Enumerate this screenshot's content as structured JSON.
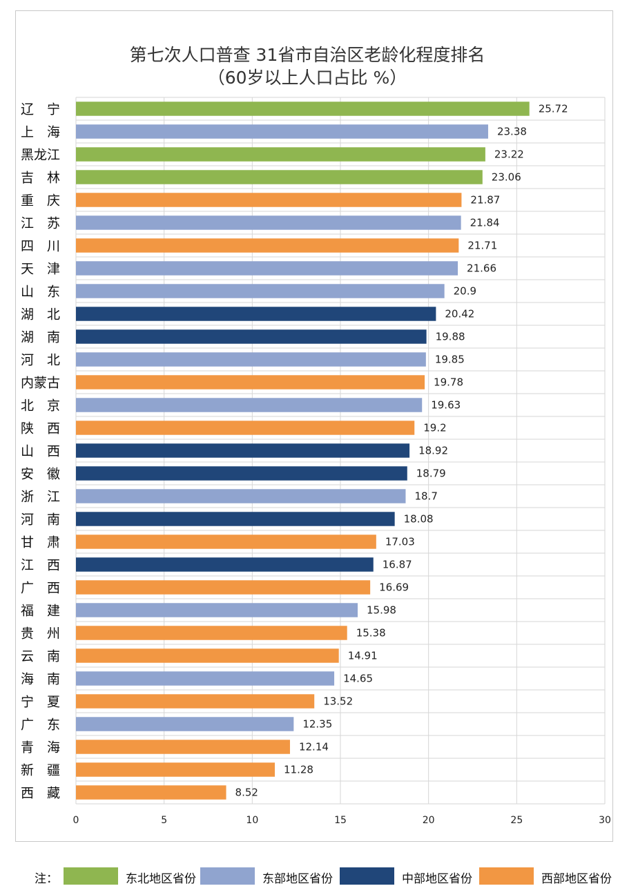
{
  "chart_data": {
    "type": "bar",
    "orientation": "horizontal",
    "title": "第七次人口普查 31省市自治区老龄化程度排名",
    "subtitle": "（60岁以上人口占比  %）",
    "xlim": [
      0,
      30
    ],
    "x_ticks": [
      "0",
      "5",
      "10",
      "15",
      "20",
      "25",
      "30"
    ],
    "grid": true,
    "categories": [
      "辽　宁",
      "上　海",
      "黑龙江",
      "吉　林",
      "重　庆",
      "江　苏",
      "四　川",
      "天　津",
      "山　东",
      "湖　北",
      "湖　南",
      "河　北",
      "内蒙古",
      "北　京",
      "陕　西",
      "山　西",
      "安　徽",
      "浙　江",
      "河　南",
      "甘　肃",
      "江　西",
      "广　西",
      "福　建",
      "贵　州",
      "云　南",
      "海　南",
      "宁　夏",
      "广　东",
      "青　海",
      "新　疆",
      "西　藏"
    ],
    "values": [
      25.72,
      23.38,
      23.22,
      23.06,
      21.87,
      21.84,
      21.71,
      21.66,
      20.9,
      20.42,
      19.88,
      19.85,
      19.78,
      19.63,
      19.2,
      18.92,
      18.79,
      18.7,
      18.08,
      17.03,
      16.87,
      16.69,
      15.98,
      15.38,
      14.91,
      14.65,
      13.52,
      12.35,
      12.14,
      11.28,
      8.52
    ],
    "value_labels": [
      "25.72",
      "23.38",
      "23.22",
      "23.06",
      "21.87",
      "21.84",
      "21.71",
      "21.66",
      "20.9",
      "20.42",
      "19.88",
      "19.85",
      "19.78",
      "19.63",
      "19.2",
      "18.92",
      "18.79",
      "18.7",
      "18.08",
      "17.03",
      "16.87",
      "16.69",
      "15.98",
      "15.38",
      "14.91",
      "14.65",
      "13.52",
      "12.35",
      "12.14",
      "11.28",
      "8.52"
    ],
    "groups": [
      "northeast",
      "east",
      "northeast",
      "northeast",
      "west",
      "east",
      "west",
      "east",
      "east",
      "central",
      "central",
      "east",
      "west",
      "east",
      "west",
      "central",
      "central",
      "east",
      "central",
      "west",
      "central",
      "west",
      "east",
      "west",
      "west",
      "east",
      "west",
      "east",
      "west",
      "west",
      "west"
    ]
  },
  "legend": {
    "note": "注：",
    "items": [
      {
        "key": "northeast",
        "label": "东北地区省份",
        "color": "#8fb650"
      },
      {
        "key": "east",
        "label": "东部地区省份",
        "color": "#90a4cf"
      },
      {
        "key": "central",
        "label": "中部地区省份",
        "color": "#204679"
      },
      {
        "key": "west",
        "label": "西部地区省份",
        "color": "#f29743"
      }
    ]
  }
}
